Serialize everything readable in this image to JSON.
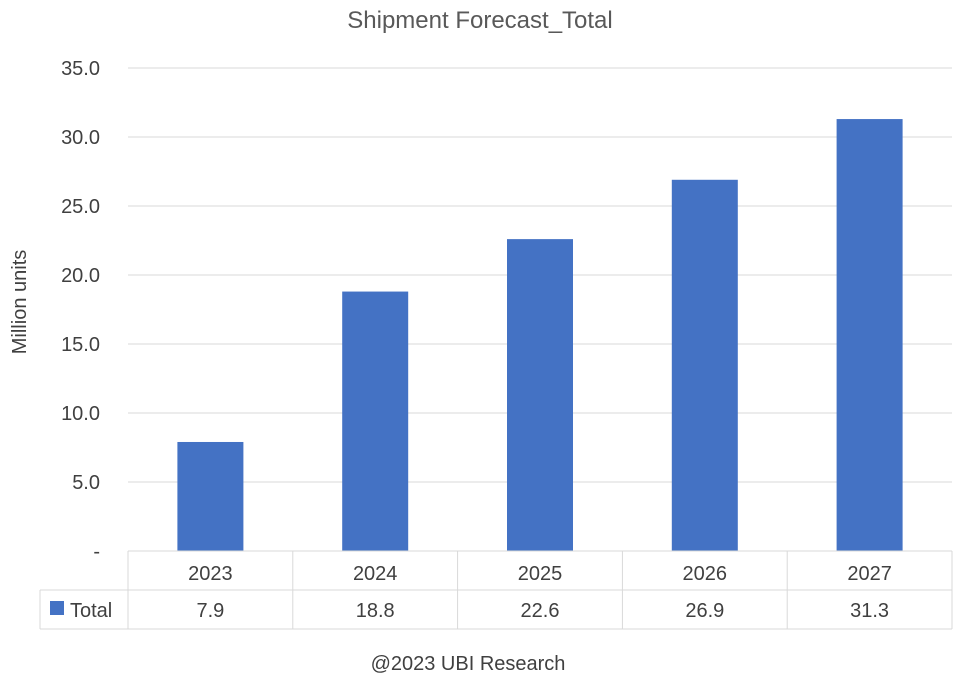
{
  "chart_data": {
    "type": "bar",
    "title": "Shipment Forecast_Total",
    "ylabel": "Million units",
    "xlabel": "",
    "categories": [
      "2023",
      "2024",
      "2025",
      "2026",
      "2027"
    ],
    "series": [
      {
        "name": "Total",
        "values": [
          7.9,
          18.8,
          22.6,
          26.9,
          31.3
        ],
        "color": "#4472c4"
      }
    ],
    "ylim": [
      0,
      35
    ],
    "yticks": [
      "-",
      "5.0",
      "10.0",
      "15.0",
      "20.0",
      "25.0",
      "30.0",
      "35.0"
    ],
    "data_labels": [
      "7.9",
      "18.8",
      "22.6",
      "26.9",
      "31.3"
    ],
    "grid": true,
    "legend": "data-table"
  },
  "footer": "@2023 UBI Research"
}
